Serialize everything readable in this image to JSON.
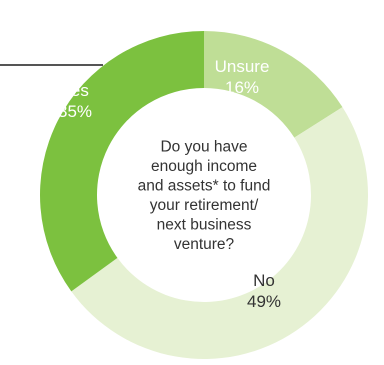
{
  "chart_data": {
    "type": "pie",
    "variant": "donut",
    "center_text": [
      "Do you have",
      "enough income",
      "and assets* to fund",
      "your retirement/",
      "next business",
      "venture?"
    ],
    "slices": [
      {
        "name": "Unsure",
        "percent_label": "16%",
        "value": 16,
        "color": "#bfde96",
        "label_color": "#ffffff"
      },
      {
        "name": "No",
        "percent_label": "49%",
        "value": 49,
        "color": "#e6f1d3",
        "label_color": "#333333"
      },
      {
        "name": "Yes",
        "percent_label": "35%",
        "value": 35,
        "color": "#7cc13f",
        "label_color": "#ffffff"
      }
    ],
    "start_angle_deg": 0,
    "callout_line_color": "#555555"
  }
}
